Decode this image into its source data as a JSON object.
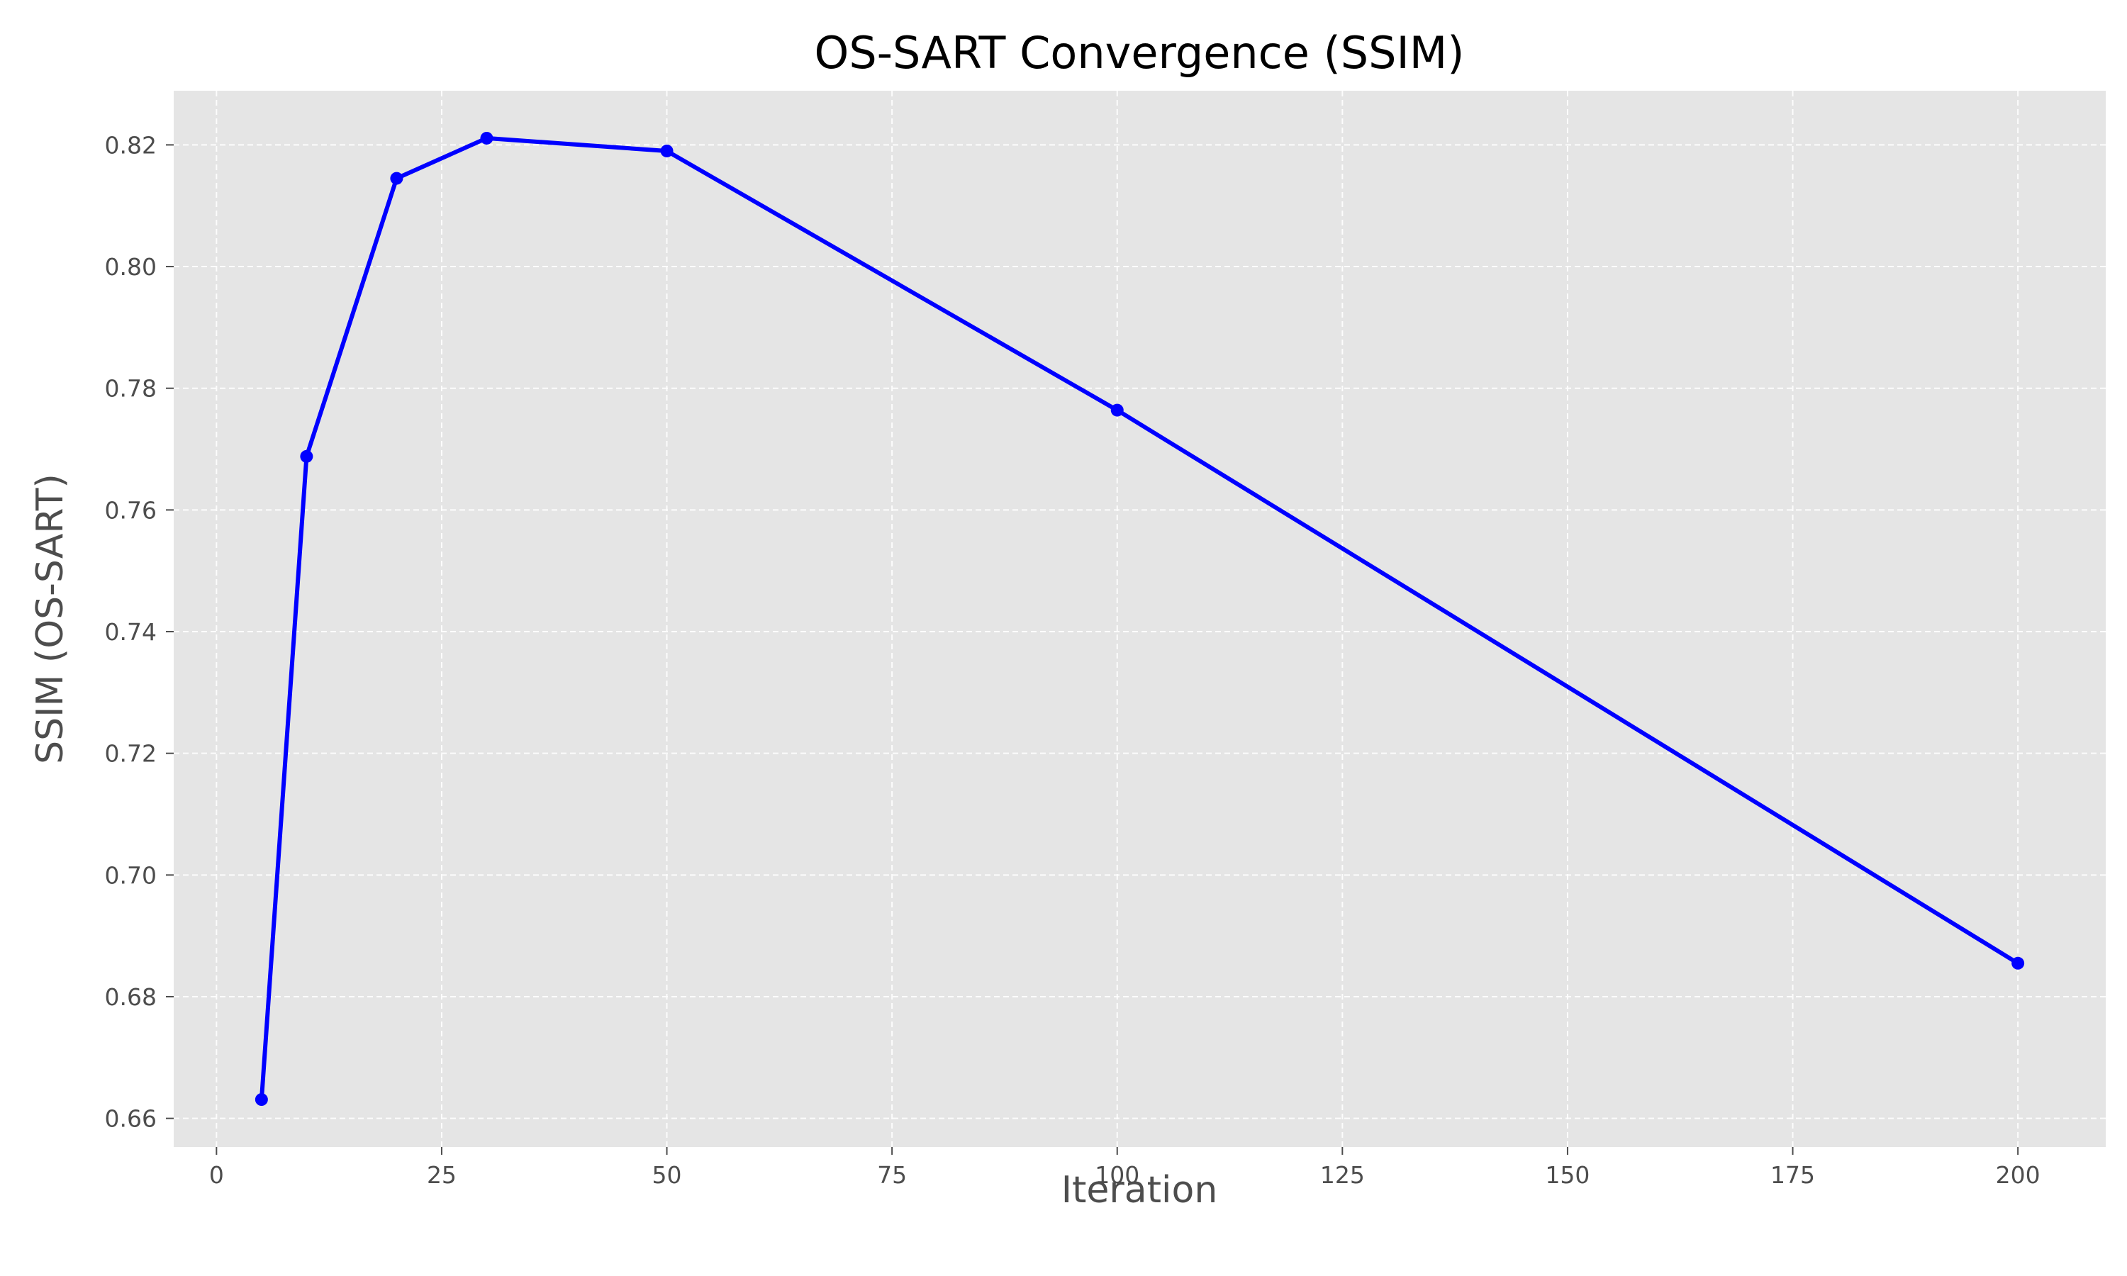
{
  "chart_data": {
    "type": "line",
    "title": "OS-SART Convergence (SSIM)",
    "xlabel": "Iteration",
    "ylabel": "SSIM (OS-SART)",
    "xlim": [
      -4.75,
      209.75
    ],
    "ylim": [
      0.6553,
      0.8289
    ],
    "xticks": [
      0,
      25,
      50,
      75,
      100,
      125,
      150,
      175,
      200
    ],
    "yticks": [
      0.66,
      0.68,
      0.7,
      0.72,
      0.74,
      0.76,
      0.78,
      0.8,
      0.82
    ],
    "xtick_labels": [
      "0",
      "25",
      "50",
      "75",
      "100",
      "125",
      "150",
      "175",
      "200"
    ],
    "ytick_labels": [
      "0.66",
      "0.68",
      "0.70",
      "0.72",
      "0.74",
      "0.76",
      "0.78",
      "0.80",
      "0.82"
    ],
    "grid": true,
    "legend": "none",
    "series": [
      {
        "x": [
          5,
          10,
          20,
          30,
          50,
          100,
          200
        ],
        "values": [
          0.6631,
          0.7688,
          0.8145,
          0.8211,
          0.819,
          0.7764,
          0.6855
        ],
        "color": "#0000ff"
      }
    ],
    "colors": {
      "plot_background": "#e5e5e5",
      "grid": "#ffffff",
      "line": "#0000ff"
    }
  }
}
